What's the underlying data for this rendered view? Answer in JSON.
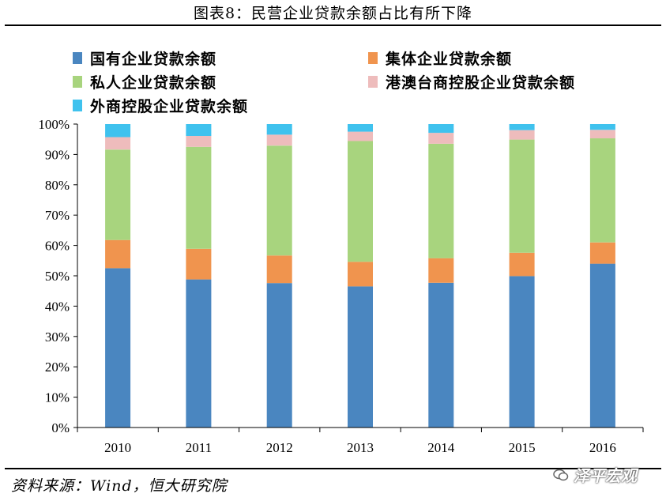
{
  "title": "图表8：民营企业贷款余额占比有所下降",
  "source": "资料来源：Wind，恒大研究院",
  "watermark": "泽平宏观",
  "chart_data": {
    "type": "bar",
    "stacked": true,
    "categories": [
      "2010",
      "2011",
      "2012",
      "2013",
      "2014",
      "2015",
      "2016"
    ],
    "ylim": [
      0,
      100
    ],
    "yticks": [
      "0%",
      "10%",
      "20%",
      "30%",
      "40%",
      "50%",
      "60%",
      "70%",
      "80%",
      "90%",
      "100%"
    ],
    "legend_position": "top",
    "grid": false,
    "series": [
      {
        "name": "国有企业贷款余额",
        "color": "#4a86c0",
        "values": [
          52.5,
          48.8,
          47.6,
          46.5,
          47.7,
          49.9,
          54.0
        ]
      },
      {
        "name": "集体企业贷款余额",
        "color": "#f0944e",
        "values": [
          9.3,
          10.1,
          9.1,
          8.1,
          8.1,
          7.7,
          7.0
        ]
      },
      {
        "name": "私人企业贷款余额",
        "color": "#a8d47e",
        "values": [
          29.8,
          33.6,
          36.2,
          39.8,
          37.7,
          37.3,
          34.3
        ]
      },
      {
        "name": "港澳台商控股企业贷款余额",
        "color": "#eebcbc",
        "values": [
          4.1,
          3.6,
          3.6,
          3.1,
          3.6,
          3.1,
          2.8
        ]
      },
      {
        "name": "外商控股企业贷款余额",
        "color": "#3fc2ee",
        "values": [
          4.3,
          3.9,
          3.5,
          2.5,
          2.9,
          2.0,
          1.9
        ]
      }
    ]
  }
}
